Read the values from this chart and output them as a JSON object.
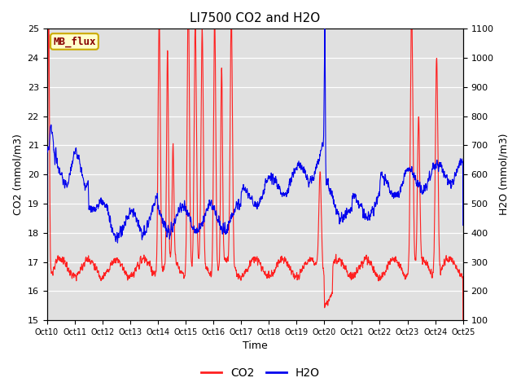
{
  "title": "LI7500 CO2 and H2O",
  "xlabel": "Time",
  "ylabel_left": "CO2 (mmol/m3)",
  "ylabel_right": "H2O (mmol/m3)",
  "annotation": "MB_flux",
  "co2_ylim": [
    15.0,
    25.0
  ],
  "h2o_ylim": [
    100,
    1100
  ],
  "co2_yticks": [
    15.0,
    16.0,
    17.0,
    18.0,
    19.0,
    20.0,
    21.0,
    22.0,
    23.0,
    24.0,
    25.0
  ],
  "h2o_yticks": [
    100,
    200,
    300,
    400,
    500,
    600,
    700,
    800,
    900,
    1000,
    1100
  ],
  "xtick_labels": [
    "Oct 10",
    "Oct 11",
    "Oct 12",
    "Oct 13",
    "Oct 14",
    "Oct 15",
    "Oct 16",
    "Oct 17",
    "Oct 18",
    "Oct 19",
    "Oct 20",
    "Oct 21",
    "Oct 22",
    "Oct 23",
    "Oct 24",
    "Oct 25"
  ],
  "co2_color": "#FF2020",
  "h2o_color": "#0000EE",
  "bg_color": "#E0E0E0",
  "fig_bg_color": "#FFFFFF",
  "annotation_bg": "#FFFFCC",
  "annotation_border": "#CCAA00",
  "annotation_text_color": "#880000",
  "legend_co2_label": "CO2",
  "legend_h2o_label": "H2O",
  "linewidth": 0.8,
  "n_days": 15,
  "n_points": 2160
}
